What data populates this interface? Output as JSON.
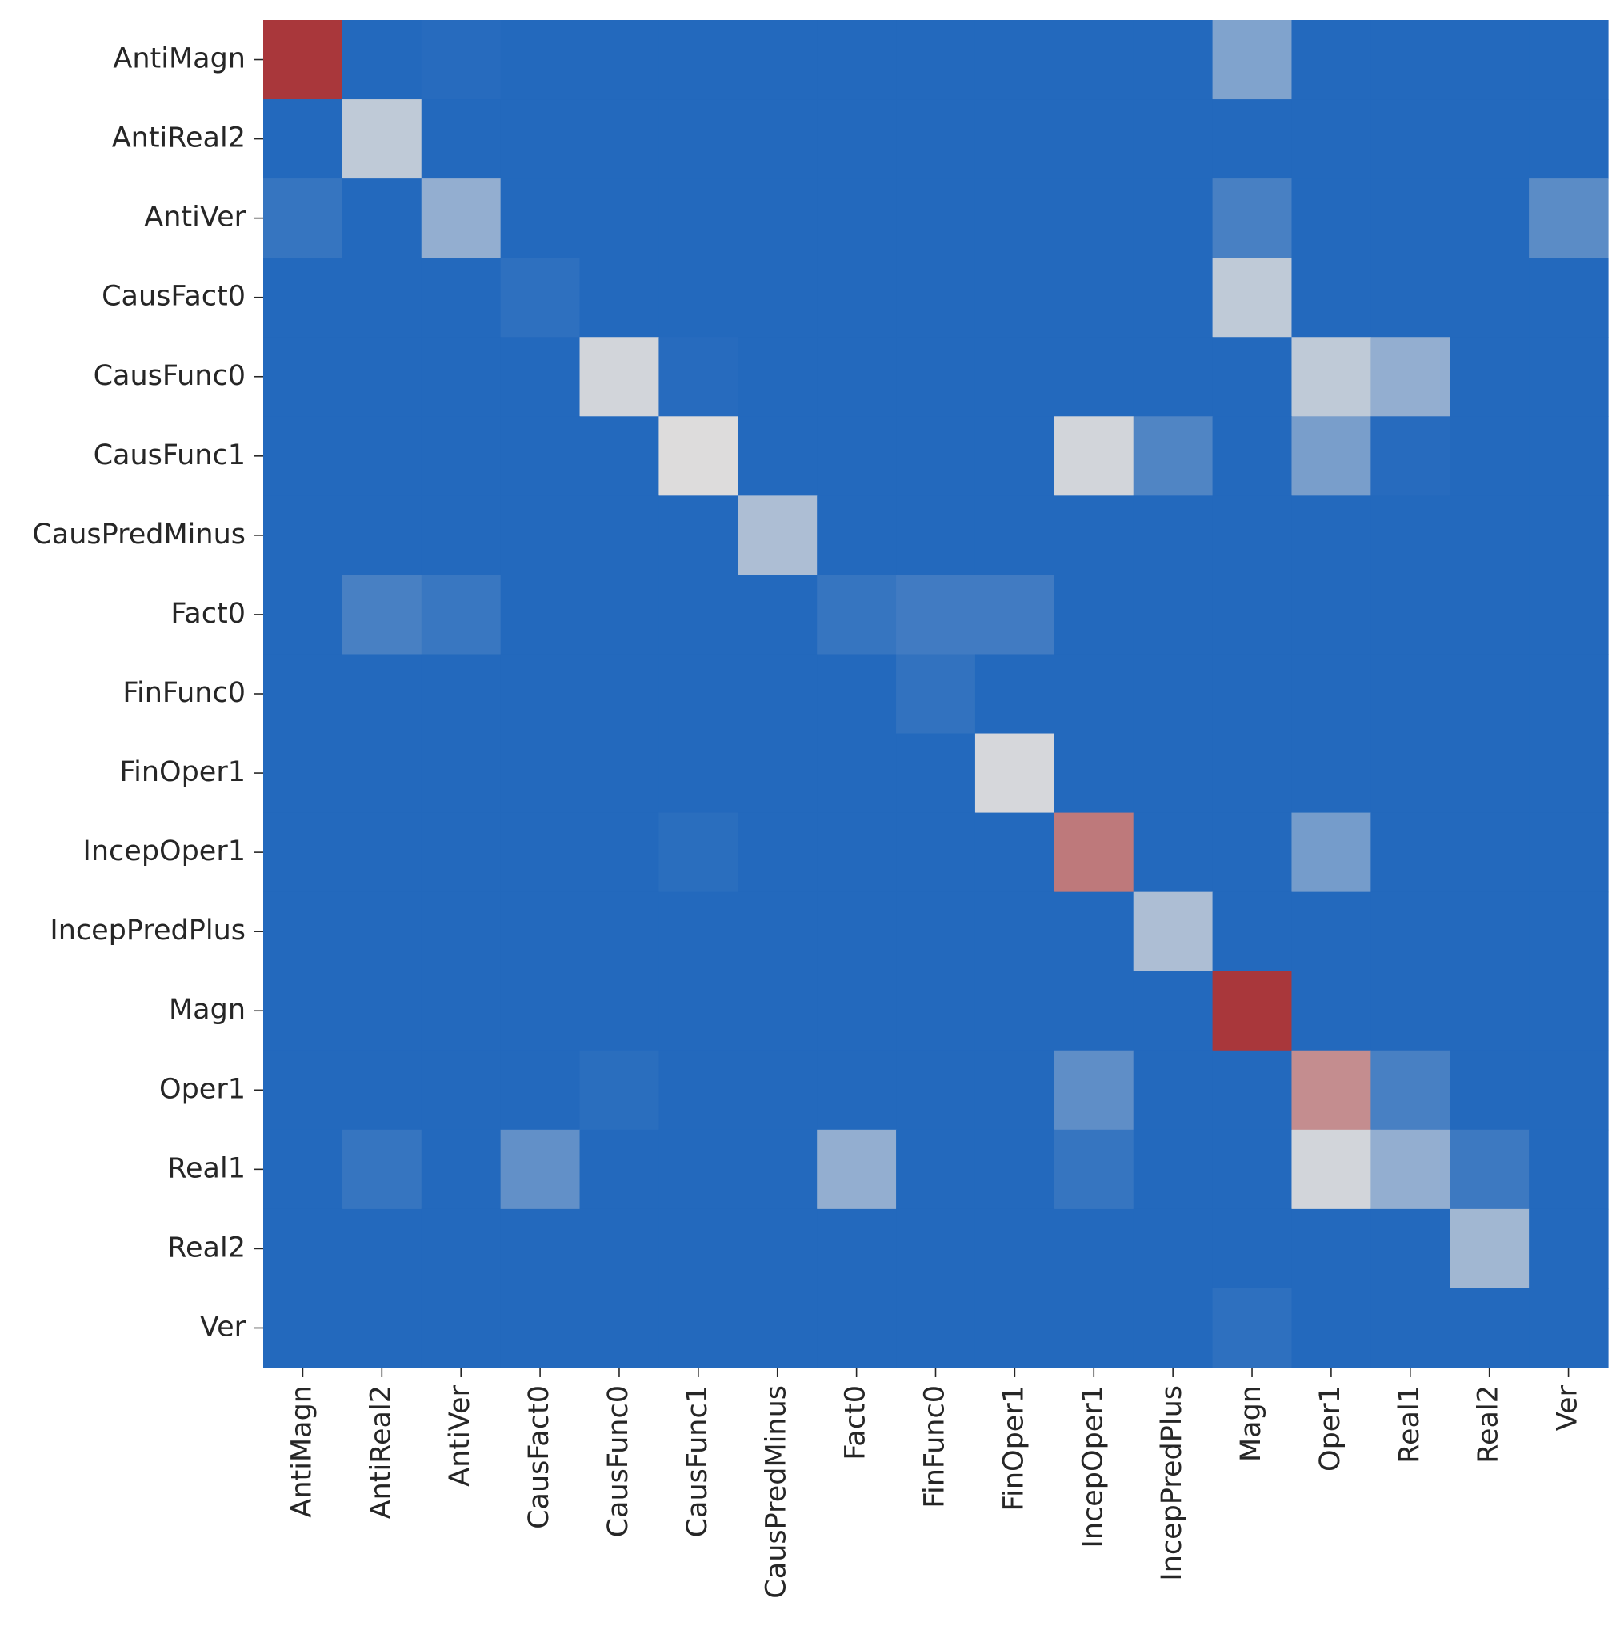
{
  "chart_data": {
    "type": "heatmap",
    "title": "",
    "xlabel": "",
    "ylabel": "",
    "colormap": "coolwarm",
    "colorbar": false,
    "vrange": [
      0,
      1
    ],
    "colors": {
      "low": "#2369bd",
      "mid": "#dddcdc",
      "high": "#a9373b"
    },
    "y_categories": [
      "AntiMagn",
      "AntiReal2",
      "AntiVer",
      "CausFact0",
      "CausFunc0",
      "CausFunc1",
      "CausPredMinus",
      "Fact0",
      "FinFunc0",
      "FinOper1",
      "IncepOper1",
      "IncepPredPlus",
      "Magn",
      "Oper1",
      "Real1",
      "Real2",
      "Ver"
    ],
    "x_categories": [
      "AntiMagn",
      "AntiReal2",
      "AntiVer",
      "CausFact0",
      "CausFunc0",
      "CausFunc1",
      "CausPredMinus",
      "Fact0",
      "FinFunc0",
      "FinOper1",
      "IncepOper1",
      "IncepPredPlus",
      "Magn",
      "Oper1",
      "Real1",
      "Real2",
      "Ver"
    ],
    "values": [
      [
        1.0,
        0,
        0.01,
        0,
        0,
        0,
        0,
        0,
        0,
        0,
        0,
        0,
        0.25,
        0,
        0,
        0,
        0
      ],
      [
        0,
        0.42,
        0,
        0,
        0,
        0,
        0,
        0,
        0,
        0,
        0,
        0,
        0,
        0,
        0,
        0,
        0
      ],
      [
        0.05,
        0,
        0.3,
        0,
        0,
        0,
        0,
        0,
        0,
        0,
        0,
        0,
        0.1,
        0,
        0,
        0,
        0.15
      ],
      [
        0,
        0,
        0,
        0.03,
        0,
        0,
        0,
        0,
        0,
        0,
        0,
        0,
        0.42,
        0,
        0,
        0,
        0
      ],
      [
        0,
        0,
        0,
        0,
        0.47,
        0.01,
        0,
        0,
        0,
        0,
        0,
        0,
        0,
        0.42,
        0.3,
        0,
        0
      ],
      [
        0,
        0,
        0,
        0,
        0,
        0.5,
        0,
        0,
        0,
        0,
        0.47,
        0.12,
        0,
        0.23,
        0.01,
        0,
        0
      ],
      [
        0,
        0,
        0,
        0,
        0,
        0,
        0.37,
        0,
        0,
        0,
        0,
        0,
        0,
        0,
        0,
        0,
        0
      ],
      [
        0,
        0.1,
        0.06,
        0,
        0,
        0,
        0,
        0.05,
        0.08,
        0.08,
        0,
        0,
        0,
        0,
        0,
        0,
        0
      ],
      [
        0,
        0,
        0,
        0,
        0,
        0,
        0,
        0,
        0.04,
        0,
        0,
        0,
        0,
        0,
        0,
        0,
        0
      ],
      [
        0,
        0,
        0,
        0,
        0,
        0,
        0,
        0,
        0,
        0.48,
        0,
        0,
        0,
        0,
        0,
        0,
        0
      ],
      [
        0,
        0,
        0,
        0,
        0,
        0.02,
        0,
        0,
        0,
        0,
        0.8,
        0,
        0,
        0.22,
        0,
        0,
        0
      ],
      [
        0,
        0,
        0,
        0,
        0,
        0,
        0,
        0,
        0,
        0,
        0,
        0.37,
        0,
        0,
        0,
        0,
        0
      ],
      [
        0,
        0,
        0,
        0,
        0,
        0,
        0,
        0,
        0,
        0,
        0,
        0,
        1.0,
        0,
        0,
        0,
        0
      ],
      [
        0,
        0,
        0,
        0,
        0.02,
        0,
        0,
        0,
        0,
        0,
        0.16,
        0,
        0,
        0.74,
        0.1,
        0,
        0
      ],
      [
        0,
        0.05,
        0,
        0.17,
        0,
        0,
        0,
        0.3,
        0,
        0,
        0.05,
        0,
        0,
        0.47,
        0.3,
        0.07,
        0
      ],
      [
        0,
        0,
        0,
        0,
        0,
        0,
        0,
        0,
        0,
        0,
        0,
        0,
        0,
        0,
        0,
        0.34,
        0
      ],
      [
        0,
        0,
        0,
        0,
        0,
        0,
        0,
        0,
        0,
        0,
        0,
        0,
        0.03,
        0,
        0,
        0,
        0
      ]
    ]
  }
}
